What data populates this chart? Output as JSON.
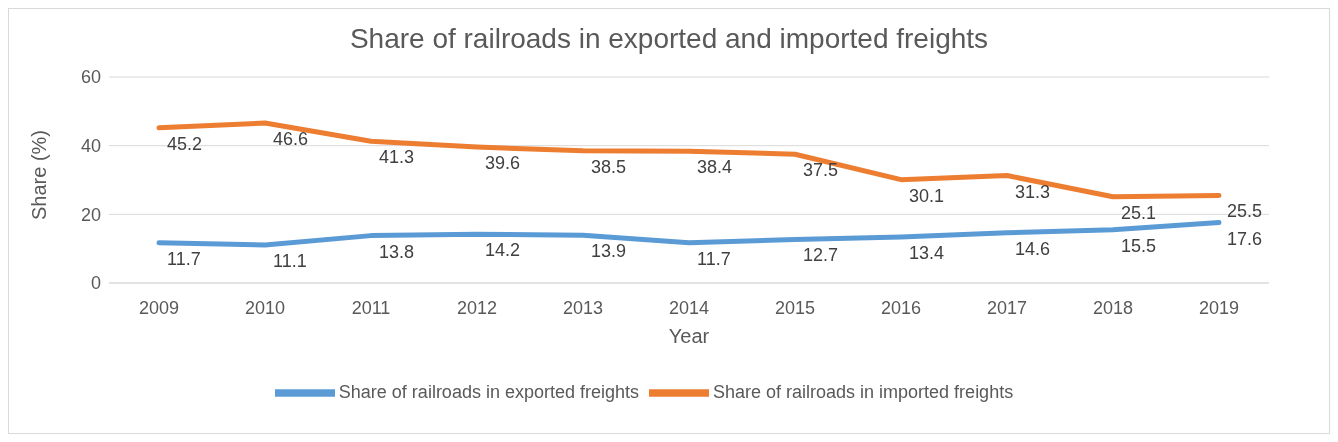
{
  "chart_data": {
    "type": "line",
    "title": "Share of railroads in exported and imported freights",
    "xlabel": "Year",
    "ylabel": "Share (%)",
    "categories": [
      "2009",
      "2010",
      "2011",
      "2012",
      "2013",
      "2014",
      "2015",
      "2016",
      "2017",
      "2018",
      "2019"
    ],
    "series": [
      {
        "name": "Share of railroads in exported freights",
        "color": "#5b9bd5",
        "values": [
          11.7,
          11.1,
          13.8,
          14.2,
          13.9,
          11.7,
          12.7,
          13.4,
          14.6,
          15.5,
          17.6
        ]
      },
      {
        "name": "Share of railroads in imported freights",
        "color": "#ed7d31",
        "values": [
          45.2,
          46.6,
          41.3,
          39.6,
          38.5,
          38.4,
          37.5,
          30.1,
          31.3,
          25.1,
          25.5
        ]
      }
    ],
    "ylim": [
      0,
      60
    ],
    "yticks": [
      0,
      20,
      40,
      60
    ],
    "grid": "y",
    "legend": "bottom",
    "data_labels": true,
    "marker": "none",
    "line_style": "solid"
  }
}
